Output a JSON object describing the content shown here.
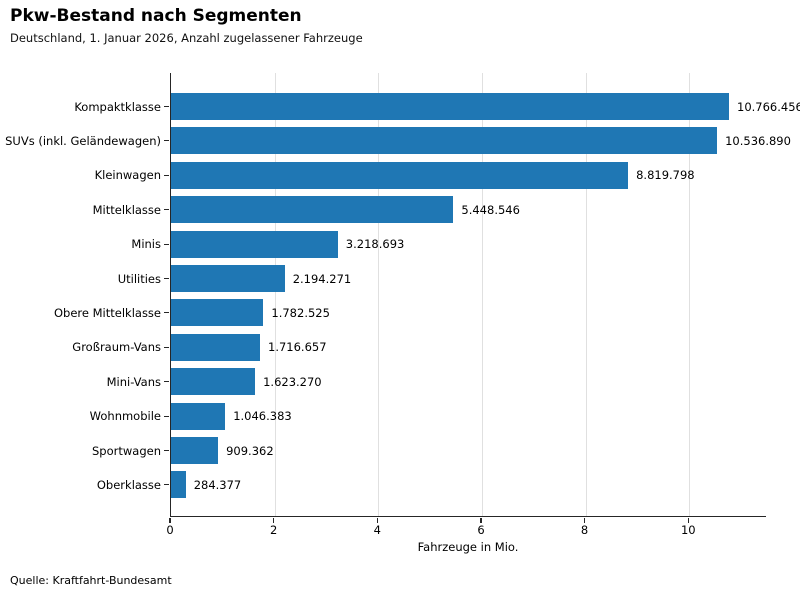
{
  "header": {
    "title": "Pkw-Bestand nach Segmenten",
    "subtitle": "Deutschland, 1. Januar 2026, Anzahl zugelassener Fahrzeuge"
  },
  "footer": {
    "source": "Quelle: Kraftfahrt-Bundesamt"
  },
  "chart_data": {
    "type": "bar",
    "orientation": "horizontal",
    "title": "Pkw-Bestand nach Segmenten",
    "subtitle": "Deutschland, 1. Januar 2026, Anzahl zugelassener Fahrzeuge",
    "xlabel": "Fahrzeuge in Mio.",
    "categories": [
      "Kompaktklasse",
      "SUVs (inkl. Geländewagen)",
      "Kleinwagen",
      "Mittelklasse",
      "Minis",
      "Utilities",
      "Obere Mittelklasse",
      "Großraum-Vans",
      "Mini-Vans",
      "Wohnmobile",
      "Sportwagen",
      "Oberklasse"
    ],
    "values": [
      10766456,
      10536890,
      8819798,
      5448546,
      3218693,
      2194271,
      1782525,
      1716657,
      1623270,
      1046383,
      909362,
      284377
    ],
    "value_labels": [
      "10.766.456",
      "10.536.890",
      "8.819.798",
      "5.448.546",
      "3.218.693",
      "2.194.271",
      "1.782.525",
      "1.716.657",
      "1.623.270",
      "1.046.383",
      "909.362",
      "284.377"
    ],
    "xticks": [
      0,
      2,
      4,
      6,
      8,
      10
    ],
    "xtick_labels": [
      "0",
      "2",
      "4",
      "6",
      "8",
      "10"
    ],
    "xlim": [
      0,
      11.5
    ],
    "grid": "vertical",
    "legend": "none",
    "bar_color": "#1f77b4",
    "source": "Quelle: Kraftfahrt-Bundesamt"
  }
}
